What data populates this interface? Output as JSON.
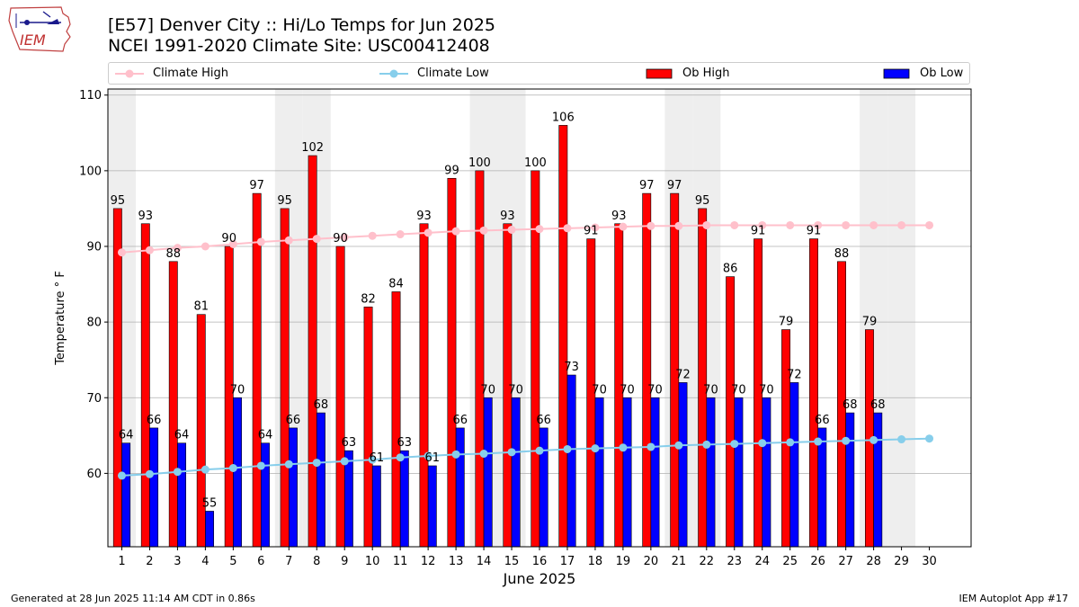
{
  "header": {
    "title_line1": "[E57] Denver City :: Hi/Lo Temps for Jun 2025",
    "title_line2": "NCEI 1991-2020 Climate Site: USC00412408"
  },
  "logo": {
    "text": "IEM"
  },
  "footer": {
    "generated": "Generated at 28 Jun 2025 11:14 AM CDT in 0.86s",
    "app": "IEM Autoplot App #17"
  },
  "colors": {
    "ob_high": "#ff0000",
    "ob_low": "#0000ff",
    "climate_high": "#ffc0cb",
    "climate_low": "#87ceeb",
    "weekend_band": "#eeeeee",
    "grid": "#b0b0b0"
  },
  "chart_data": {
    "type": "bar",
    "title": "[E57] Denver City :: Hi/Lo Temps for Jun 2025",
    "subtitle": "NCEI 1991-2020 Climate Site: USC00412408",
    "xlabel": "June 2025",
    "ylabel": "Temperature ° F",
    "ylim": [
      50.3,
      110.8
    ],
    "yticks": [
      60,
      70,
      80,
      90,
      100,
      110
    ],
    "grid": true,
    "legend_position": "top",
    "categories": [
      "1",
      "2",
      "3",
      "4",
      "5",
      "6",
      "7",
      "8",
      "9",
      "10",
      "11",
      "12",
      "13",
      "14",
      "15",
      "16",
      "17",
      "18",
      "19",
      "20",
      "21",
      "22",
      "23",
      "24",
      "25",
      "26",
      "27",
      "28",
      "29",
      "30"
    ],
    "shaded_days": [
      1,
      7,
      8,
      14,
      15,
      21,
      22,
      28,
      29
    ],
    "legend": [
      {
        "name": "Climate High",
        "kind": "line"
      },
      {
        "name": "Climate Low",
        "kind": "line"
      },
      {
        "name": "Ob High",
        "kind": "bar"
      },
      {
        "name": "Ob Low",
        "kind": "bar"
      }
    ],
    "series": [
      {
        "name": "Ob High",
        "type": "bar",
        "values": [
          95,
          93,
          88,
          81,
          90,
          97,
          95,
          102,
          90,
          82,
          84,
          93,
          99,
          100,
          93,
          100,
          106,
          91,
          93,
          97,
          97,
          95,
          86,
          91,
          79,
          91,
          88,
          79,
          null,
          null
        ]
      },
      {
        "name": "Ob Low",
        "type": "bar",
        "values": [
          64,
          66,
          64,
          55,
          70,
          64,
          66,
          68,
          63,
          61,
          63,
          61,
          66,
          70,
          70,
          66,
          73,
          70,
          70,
          70,
          72,
          70,
          70,
          70,
          72,
          66,
          68,
          68,
          null,
          null
        ]
      },
      {
        "name": "Climate High",
        "type": "line",
        "values": [
          89.2,
          89.5,
          89.8,
          90.0,
          90.3,
          90.6,
          90.8,
          91.0,
          91.2,
          91.4,
          91.6,
          91.8,
          92.0,
          92.1,
          92.2,
          92.3,
          92.4,
          92.5,
          92.6,
          92.7,
          92.7,
          92.8,
          92.8,
          92.8,
          92.8,
          92.8,
          92.8,
          92.8,
          92.8,
          92.8
        ]
      },
      {
        "name": "Climate Low",
        "type": "line",
        "values": [
          59.7,
          59.9,
          60.2,
          60.5,
          60.7,
          61.0,
          61.2,
          61.4,
          61.6,
          61.8,
          62.1,
          62.3,
          62.5,
          62.6,
          62.8,
          63.0,
          63.2,
          63.3,
          63.4,
          63.5,
          63.7,
          63.8,
          63.9,
          64.0,
          64.1,
          64.2,
          64.3,
          64.4,
          64.5,
          64.6
        ]
      }
    ]
  }
}
